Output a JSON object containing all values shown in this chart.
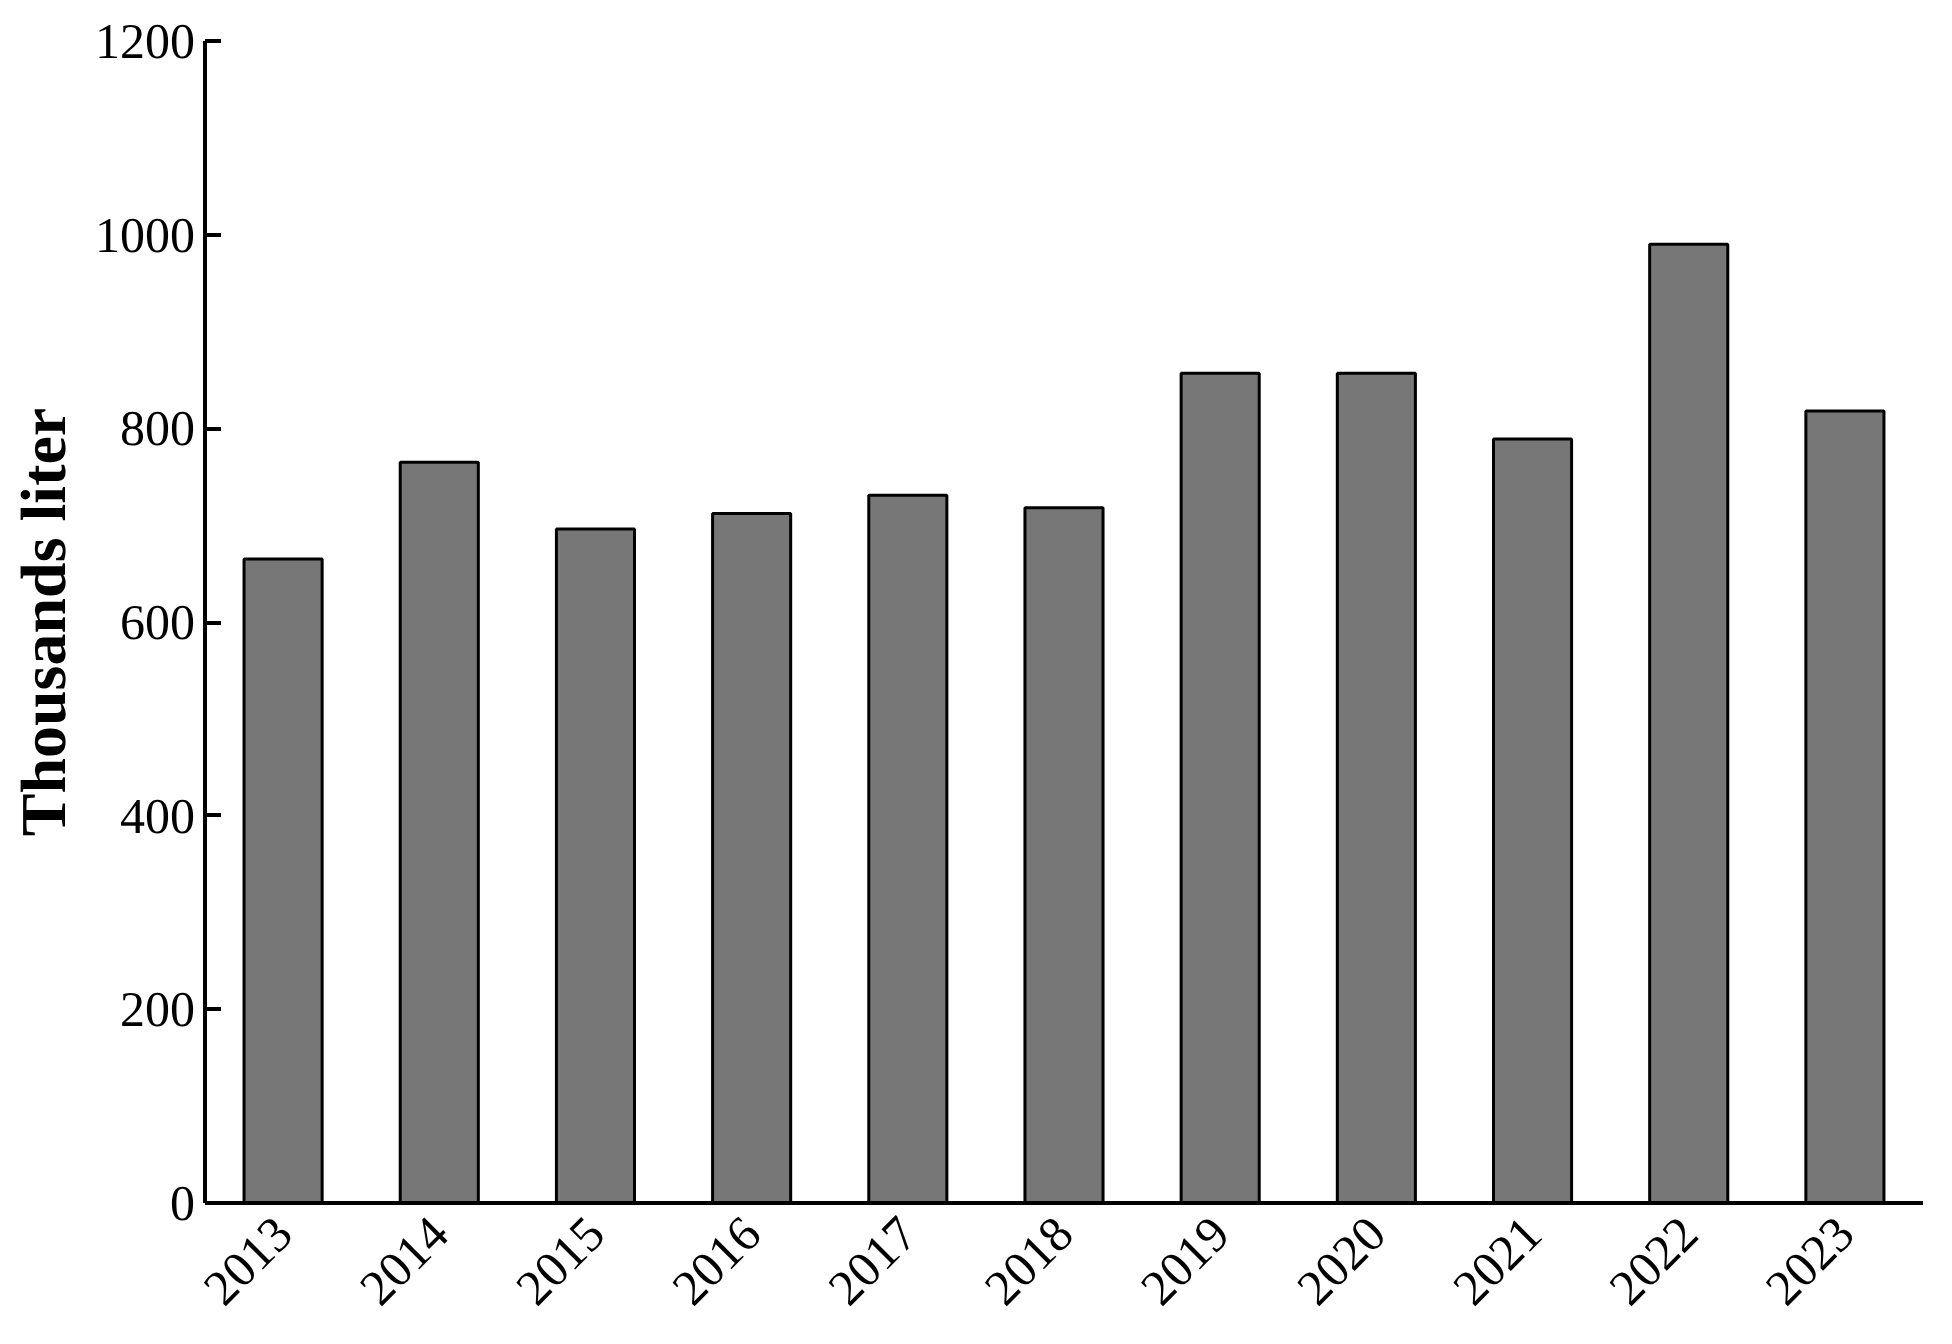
{
  "chart_data": {
    "type": "bar",
    "ylabel": "Thousands liter",
    "categories": [
      "2013",
      "2014",
      "2015",
      "2016",
      "2017",
      "2018",
      "2019",
      "2020",
      "2021",
      "2022",
      "2023"
    ],
    "values": [
      665,
      765,
      696,
      712,
      731,
      718,
      857,
      857,
      789,
      990,
      818
    ],
    "color": "#777777",
    "ylim": [
      0,
      1200
    ],
    "yticks": [
      0,
      200,
      400,
      600,
      800,
      1000,
      1200
    ],
    "grid": false
  }
}
